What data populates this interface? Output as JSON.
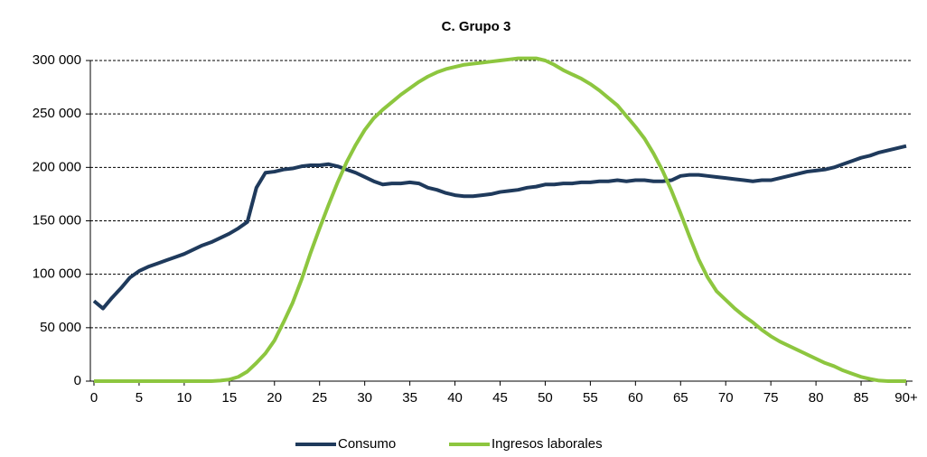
{
  "chart_data": {
    "type": "line",
    "title": "C. Grupo 3",
    "x": [
      0,
      1,
      2,
      3,
      4,
      5,
      6,
      7,
      8,
      9,
      10,
      11,
      12,
      13,
      14,
      15,
      16,
      17,
      18,
      19,
      20,
      21,
      22,
      23,
      24,
      25,
      26,
      27,
      28,
      29,
      30,
      31,
      32,
      33,
      34,
      35,
      36,
      37,
      38,
      39,
      40,
      41,
      42,
      43,
      44,
      45,
      46,
      47,
      48,
      49,
      50,
      51,
      52,
      53,
      54,
      55,
      56,
      57,
      58,
      59,
      60,
      61,
      62,
      63,
      64,
      65,
      66,
      67,
      68,
      69,
      70,
      71,
      72,
      73,
      74,
      75,
      76,
      77,
      78,
      79,
      80,
      81,
      82,
      83,
      84,
      85,
      86,
      87,
      88,
      89,
      90
    ],
    "series": [
      {
        "name": "Consumo",
        "color": "#1f3a5c",
        "values": [
          75000,
          68000,
          78000,
          87000,
          97000,
          103000,
          107000,
          110000,
          113000,
          116000,
          119000,
          123000,
          127000,
          130000,
          134000,
          138000,
          143000,
          149000,
          181000,
          195000,
          196000,
          198000,
          199000,
          201000,
          202000,
          202000,
          203000,
          201000,
          198000,
          195000,
          191000,
          187000,
          184000,
          185000,
          185000,
          186000,
          185000,
          181000,
          179000,
          176000,
          174000,
          173000,
          173000,
          174000,
          175000,
          177000,
          178000,
          179000,
          181000,
          182000,
          184000,
          184000,
          185000,
          185000,
          186000,
          186000,
          187000,
          187000,
          188000,
          187000,
          188000,
          188000,
          187000,
          187000,
          188000,
          192000,
          193000,
          193000,
          192000,
          191000,
          190000,
          189000,
          188000,
          187000,
          188000,
          188000,
          190000,
          192000,
          194000,
          196000,
          197000,
          198000,
          200000,
          203000,
          206000,
          209000,
          211000,
          214000,
          216000,
          218000,
          220000
        ]
      },
      {
        "name": "Ingresos laborales",
        "color": "#8dc63f",
        "values": [
          0,
          0,
          0,
          0,
          0,
          0,
          0,
          0,
          0,
          0,
          0,
          0,
          0,
          0,
          500,
          1500,
          4000,
          9000,
          17000,
          26000,
          38000,
          55000,
          73000,
          95000,
          120000,
          143000,
          165000,
          186000,
          205000,
          221000,
          235000,
          246000,
          254000,
          261000,
          268000,
          274000,
          280000,
          285000,
          289000,
          292000,
          294000,
          296000,
          297000,
          298000,
          299000,
          300000,
          301000,
          302000,
          302000,
          302000,
          300000,
          296000,
          291000,
          287000,
          283000,
          278000,
          272000,
          265000,
          258000,
          248000,
          238000,
          227000,
          213000,
          197000,
          178000,
          157000,
          135000,
          114000,
          97000,
          84000,
          76000,
          68000,
          61000,
          55000,
          48000,
          42000,
          37000,
          33000,
          29000,
          25000,
          21000,
          17000,
          14000,
          10000,
          7000,
          4000,
          2000,
          500,
          0,
          0,
          0
        ]
      }
    ],
    "xlim": [
      -0.4,
      90.7
    ],
    "xticks": [
      0,
      5,
      10,
      15,
      20,
      25,
      30,
      35,
      40,
      45,
      50,
      55,
      60,
      65,
      70,
      75,
      80,
      85,
      {
        "value": 90,
        "label": "90+"
      }
    ],
    "ylim": [
      0,
      300000
    ],
    "yticks": [
      {
        "value": 0,
        "label": "0"
      },
      {
        "value": 50000,
        "label": "50 000"
      },
      {
        "value": 100000,
        "label": "100 000"
      },
      {
        "value": 150000,
        "label": "150 000"
      },
      {
        "value": 200000,
        "label": "200 000"
      },
      {
        "value": 250000,
        "label": "250 000"
      },
      {
        "value": 300000,
        "label": "300 000"
      }
    ],
    "grid": true,
    "legend": "bottom"
  }
}
